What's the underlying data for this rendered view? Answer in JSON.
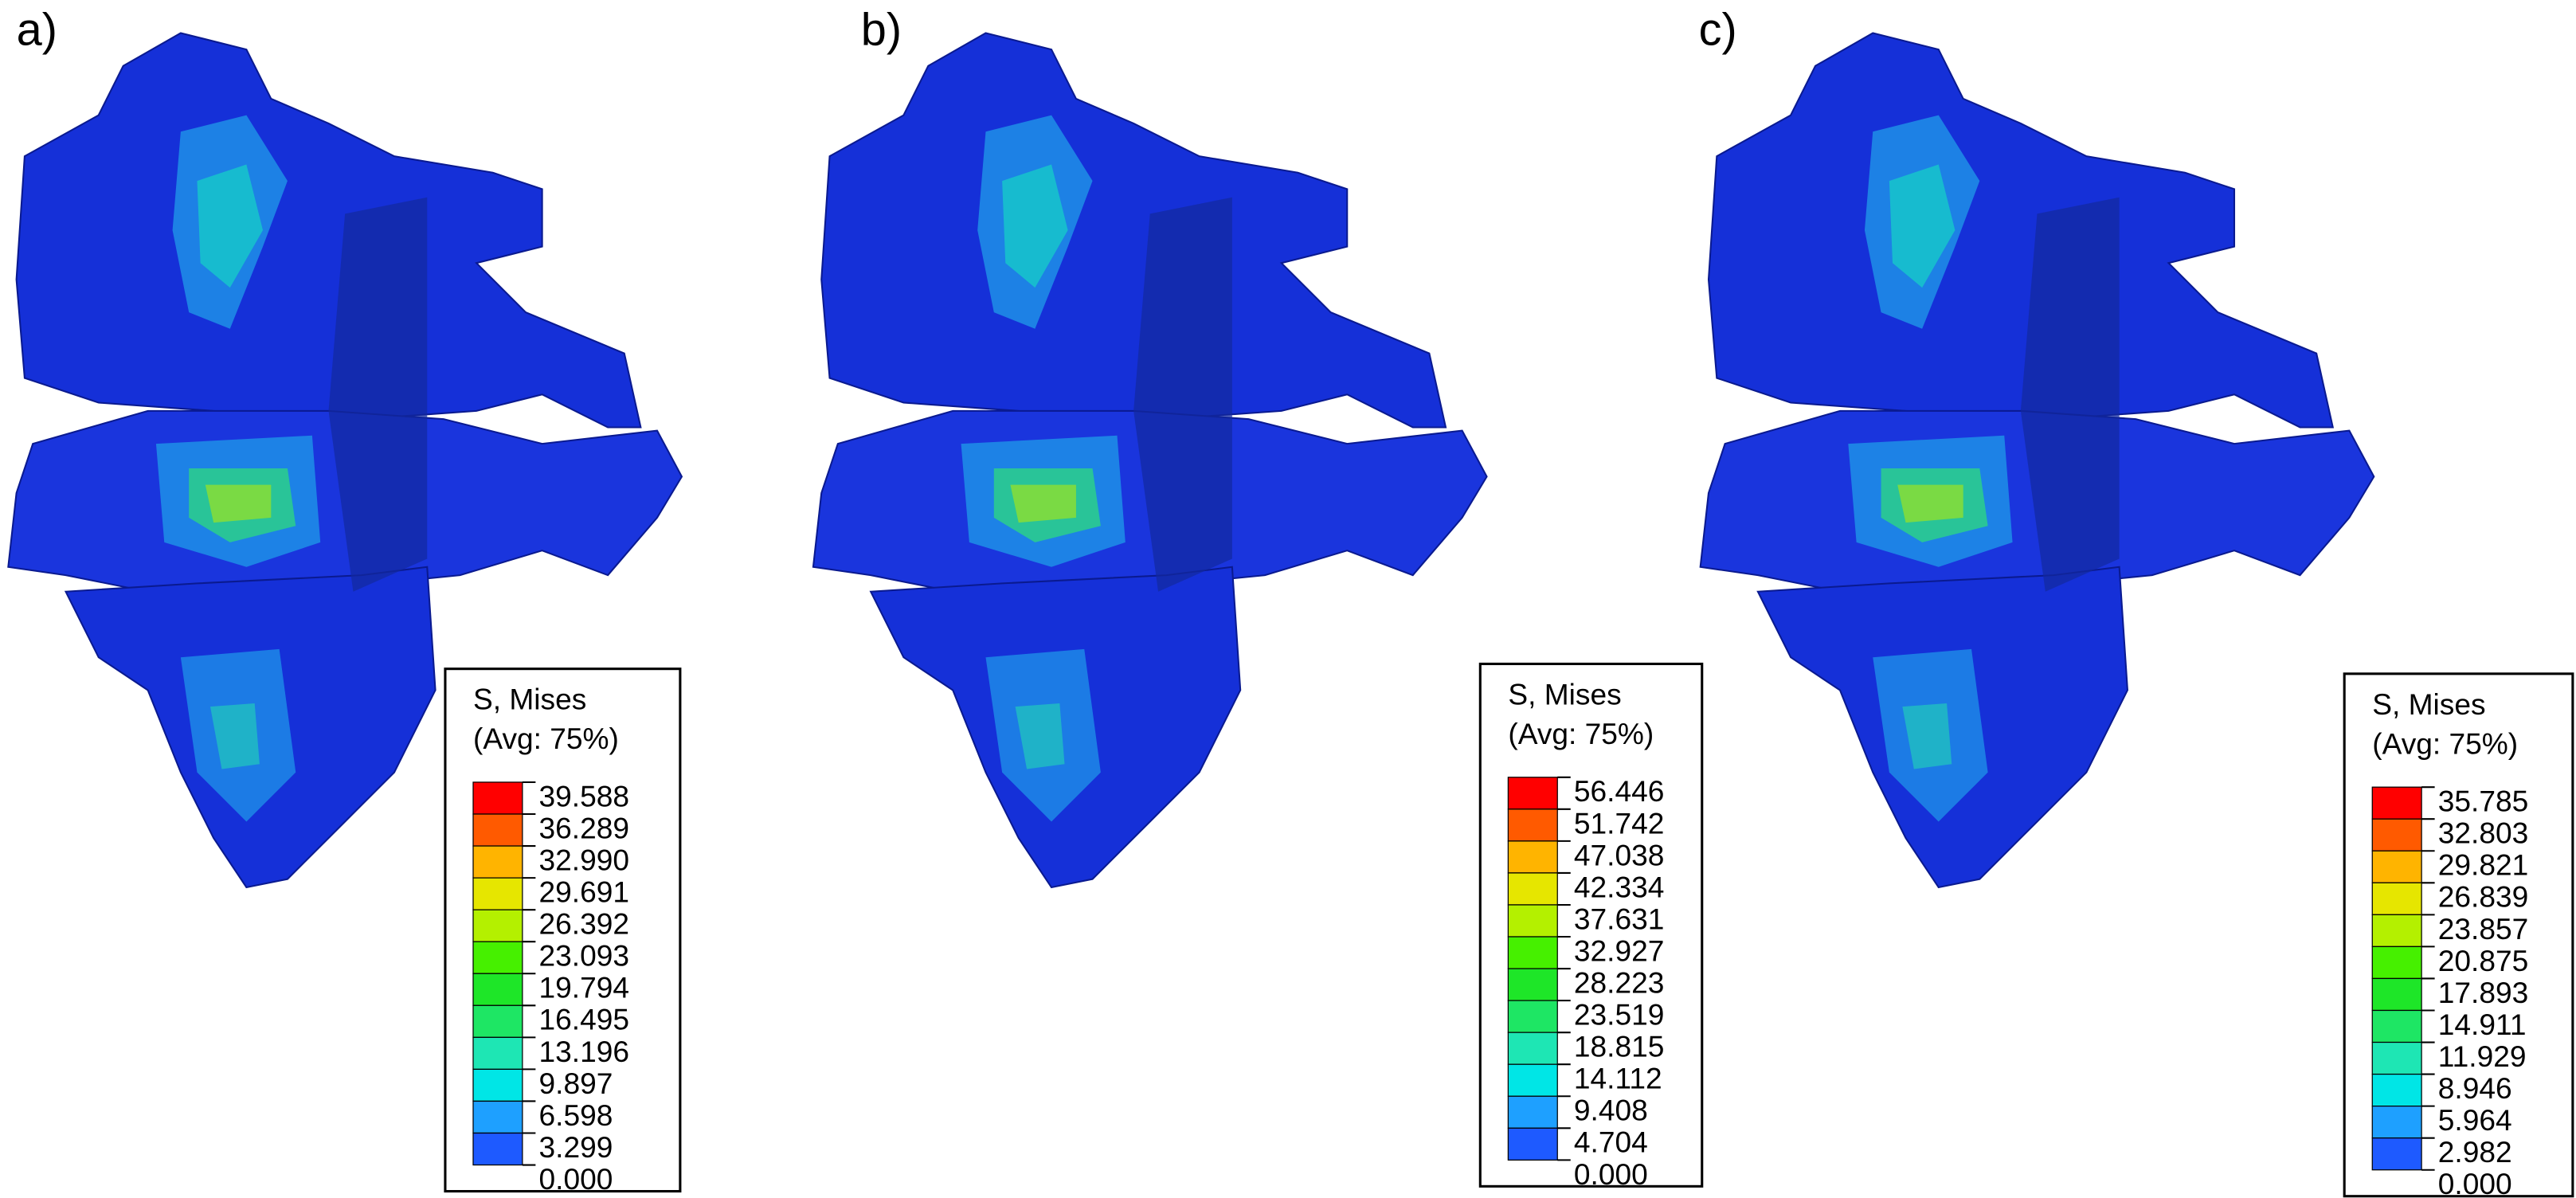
{
  "panels": [
    {
      "label": "a)",
      "legend": {
        "title": "S, Mises",
        "subtitle": "(Avg: 75%)",
        "values": [
          "39.588",
          "36.289",
          "32.990",
          "29.691",
          "26.392",
          "23.093",
          "19.794",
          "16.495",
          "13.196",
          "9.897",
          "6.598",
          "3.299",
          "0.000"
        ]
      }
    },
    {
      "label": "b)",
      "legend": {
        "title": "S, Mises",
        "subtitle": "(Avg: 75%)",
        "values": [
          "56.446",
          "51.742",
          "47.038",
          "42.334",
          "37.631",
          "32.927",
          "28.223",
          "23.519",
          "18.815",
          "14.112",
          "9.408",
          "4.704",
          "0.000"
        ]
      }
    },
    {
      "label": "c)",
      "legend": {
        "title": "S, Mises",
        "subtitle": "(Avg: 75%)",
        "values": [
          "35.785",
          "32.803",
          "29.821",
          "26.839",
          "23.857",
          "20.875",
          "17.893",
          "14.911",
          "11.929",
          "8.946",
          "5.964",
          "2.982",
          "0.000"
        ]
      }
    }
  ]
}
